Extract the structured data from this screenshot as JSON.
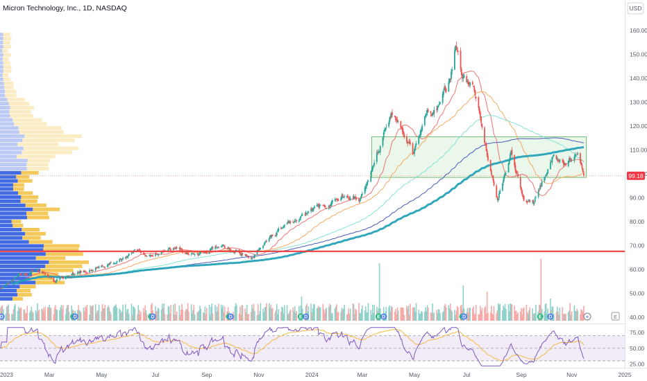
{
  "header": {
    "title": "Micron Technology, Inc., 1D, NASDAQ",
    "currency_button": "USD"
  },
  "colors": {
    "up": "#26a69a",
    "down": "#ef5350",
    "ma_fast": "#ef6c6c",
    "ma_mid": "#f2a65a",
    "ma_slow": "#7fe0d4",
    "ma_blue": "#3f51b5",
    "ma_200": "#26a2b8",
    "zone_fill": "#e3f4e3",
    "zone_stroke": "#6fbf73",
    "support_line": "#ef3f3f",
    "vp_up": "#2e5ae0",
    "vp_down": "#f3c347",
    "rsi_line": "#7e57c2",
    "rsi_signal": "#f5b942",
    "event_blue": "#4d7fe6",
    "event_green": "#27b37a"
  },
  "chart_data": [
    {
      "type": "candlestick",
      "title": "Micron Technology, Inc., 1D, NASDAQ",
      "x_tick_labels": [
        "2023",
        "Mar",
        "May",
        "Jul",
        "Sep",
        "Nov",
        "2024",
        "Mar",
        "May",
        "Jul",
        "Sep",
        "Nov",
        "2025"
      ],
      "x_tick_dates": [
        "2023-01-03",
        "2023-03-01",
        "2023-05-01",
        "2023-07-03",
        "2023-09-01",
        "2023-11-01",
        "2024-01-02",
        "2024-03-01",
        "2024-05-01",
        "2024-07-01",
        "2024-09-03",
        "2024-11-01",
        "2025-01-02"
      ],
      "y_tick_labels": [
        "160.00",
        "150.00",
        "140.00",
        "130.00",
        "120.00",
        "110.00",
        "100.00",
        "90.00",
        "80.00",
        "70.00",
        "60.00",
        "50.00",
        "40.00"
      ],
      "ylim": [
        38,
        164
      ],
      "last_price": "99.18",
      "key_level": 67.6,
      "range_box": {
        "x_start": "2024-03-12",
        "x_end": "2024-11-18",
        "y_low": 98.5,
        "y_high": 115.5
      },
      "close_path": [
        [
          "2023-01-03",
          52
        ],
        [
          "2023-01-25",
          58
        ],
        [
          "2023-02-15",
          60
        ],
        [
          "2023-03-08",
          55
        ],
        [
          "2023-03-28",
          58
        ],
        [
          "2023-04-18",
          60
        ],
        [
          "2023-05-05",
          62
        ],
        [
          "2023-05-25",
          64
        ],
        [
          "2023-06-08",
          68
        ],
        [
          "2023-06-26",
          66
        ],
        [
          "2023-07-12",
          68
        ],
        [
          "2023-08-01",
          69
        ],
        [
          "2023-08-22",
          66
        ],
        [
          "2023-09-12",
          70
        ],
        [
          "2023-10-03",
          68
        ],
        [
          "2023-10-26",
          65
        ],
        [
          "2023-11-13",
          74
        ],
        [
          "2023-12-05",
          79
        ],
        [
          "2023-12-28",
          84
        ],
        [
          "2024-01-22",
          87
        ],
        [
          "2024-02-12",
          92
        ],
        [
          "2024-02-26",
          88
        ],
        [
          "2024-03-08",
          98
        ],
        [
          "2024-03-20",
          110
        ],
        [
          "2024-04-04",
          125
        ],
        [
          "2024-04-17",
          118
        ],
        [
          "2024-04-30",
          108
        ],
        [
          "2024-05-15",
          125
        ],
        [
          "2024-05-30",
          128
        ],
        [
          "2024-06-12",
          140
        ],
        [
          "2024-06-18",
          155
        ],
        [
          "2024-06-25",
          142
        ],
        [
          "2024-07-10",
          135
        ],
        [
          "2024-07-24",
          110
        ],
        [
          "2024-08-06",
          90
        ],
        [
          "2024-08-22",
          108
        ],
        [
          "2024-09-06",
          90
        ],
        [
          "2024-09-18",
          88
        ],
        [
          "2024-10-01",
          100
        ],
        [
          "2024-10-10",
          108
        ],
        [
          "2024-10-25",
          104
        ],
        [
          "2024-11-08",
          110
        ],
        [
          "2024-11-15",
          99.18
        ]
      ],
      "moving_averages": [
        {
          "period": 20,
          "color": "#ef6c6c",
          "width": 1.0
        },
        {
          "period": 50,
          "color": "#f2a65a",
          "width": 1.0
        },
        {
          "period": 100,
          "color": "#7fe0d4",
          "width": 1.0
        },
        {
          "period": 150,
          "color": "#3f51b5",
          "width": 1.0
        },
        {
          "period": 200,
          "color": "#26a2b8",
          "width": 3.0
        }
      ],
      "grid": false
    },
    {
      "type": "line",
      "indicator": "RSI",
      "y_tick_labels": [
        "75.00",
        "50.00",
        "25.00"
      ],
      "ylim": [
        20,
        85
      ],
      "bands": [
        70,
        50,
        30
      ]
    }
  ]
}
